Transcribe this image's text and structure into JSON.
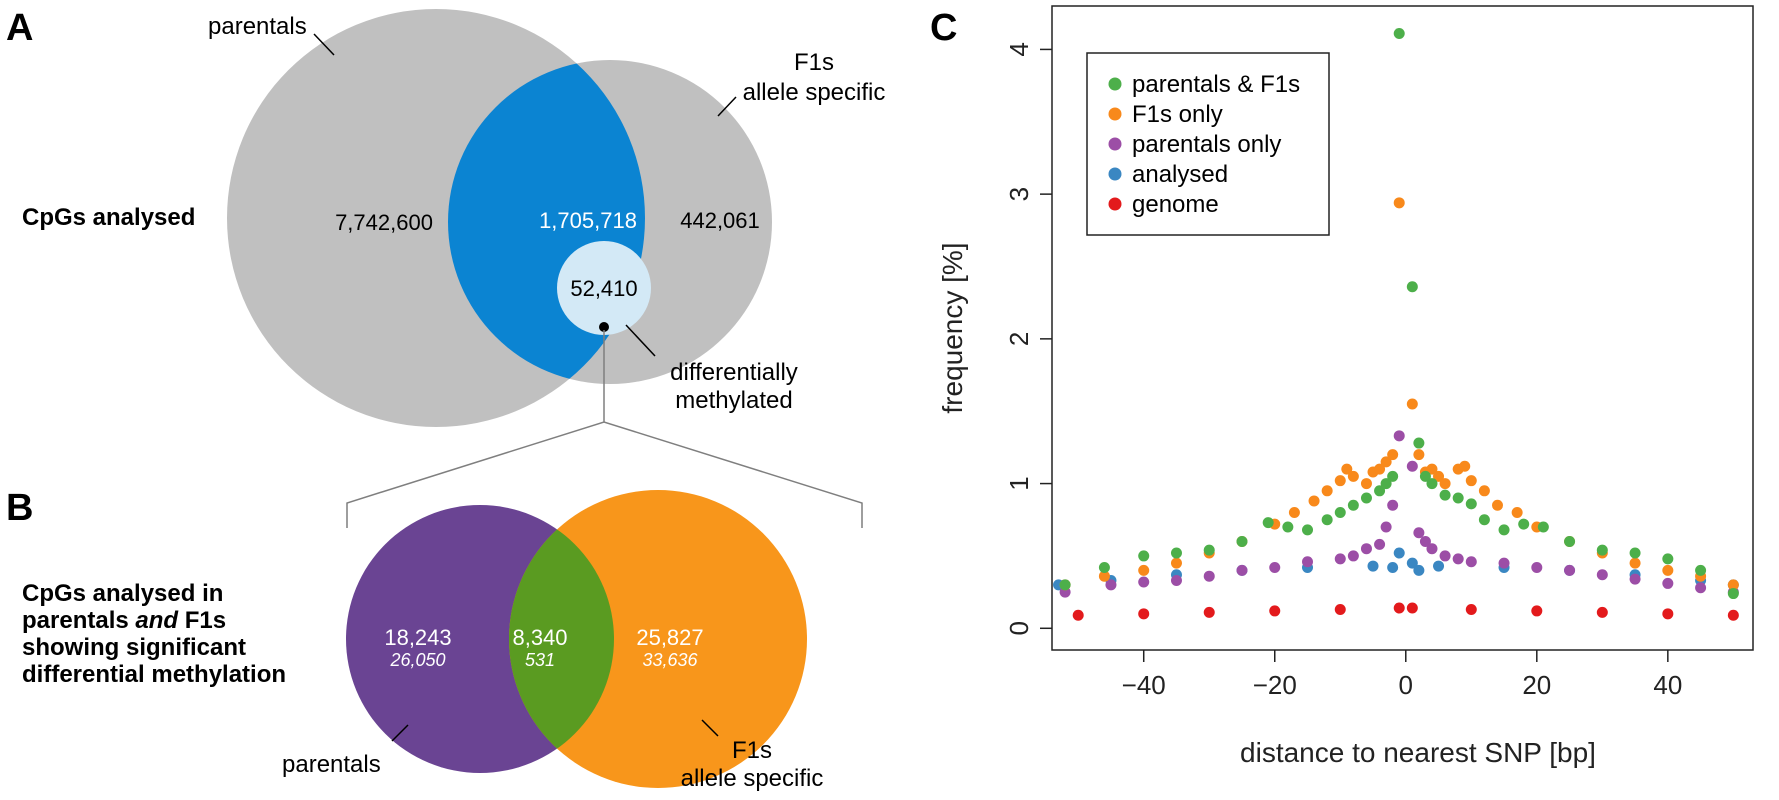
{
  "panels": {
    "a": {
      "letter": "A",
      "row_label": "CpGs analysed",
      "set1_label": "parentals",
      "set2_label_line1": "F1s",
      "set2_label_line2": "allele specific",
      "parentals_only": "7,742,600",
      "both": "1,705,718",
      "f1_only": "442,061",
      "dm": "52,410",
      "dm_label_line1": "differentially",
      "dm_label_line2": "methylated",
      "colors": {
        "gray": "#c0c0c0",
        "blue": "#0b84d2",
        "light_blue": "#d3e9f6"
      }
    },
    "b": {
      "letter": "B",
      "row_label_line1": "CpGs analysed in",
      "row_label_line2_pre": "parentals ",
      "row_label_line2_ital": "and",
      "row_label_line2_post": " F1s",
      "row_label_line3": "showing significant",
      "row_label_line4": "differential methylation",
      "left_main": "18,243",
      "left_sub": "26,050",
      "mid_main": "8,340",
      "mid_sub": "531",
      "right_main": "25,827",
      "right_sub": "33,636",
      "left_label": "parentals",
      "right_label_line1": "F1s",
      "right_label_line2": "allele specific",
      "colors": {
        "purple": "#6a4493",
        "orange": "#f8961b",
        "green": "#5a9b21"
      }
    },
    "c": {
      "letter": "C"
    }
  },
  "chart_data": {
    "type": "scatter",
    "xlabel": "distance to nearest SNP [bp]",
    "ylabel": "frequency [%]",
    "xlim": [
      -54,
      53
    ],
    "ylim": [
      -0.15,
      4.3
    ],
    "xticks": [
      -40,
      -20,
      0,
      20,
      40
    ],
    "yticks": [
      0,
      1,
      2,
      3,
      4
    ],
    "legend_position": "top-left",
    "grid": false,
    "series": [
      {
        "name": "genome",
        "color": "#e31a1c",
        "x": [
          -50,
          -40,
          -30,
          -20,
          -10,
          -1,
          1,
          10,
          20,
          30,
          40,
          50
        ],
        "y": [
          0.09,
          0.1,
          0.11,
          0.12,
          0.13,
          0.14,
          0.14,
          0.13,
          0.12,
          0.11,
          0.1,
          0.09
        ]
      },
      {
        "name": "analysed",
        "color": "#3a87c2",
        "x": [
          -53,
          -45,
          -35,
          -25,
          -15,
          -5,
          -2,
          -1,
          1,
          2,
          5,
          15,
          25,
          35,
          45,
          50
        ],
        "y": [
          0.3,
          0.33,
          0.37,
          0.4,
          0.42,
          0.43,
          0.42,
          0.52,
          0.45,
          0.4,
          0.43,
          0.42,
          0.4,
          0.37,
          0.33,
          0.3
        ]
      },
      {
        "name": "parentals only",
        "color": "#9c4ea6",
        "x": [
          -52,
          -45,
          -40,
          -35,
          -30,
          -25,
          -20,
          -15,
          -10,
          -8,
          -6,
          -4,
          -3,
          -2,
          -1,
          1,
          2,
          3,
          4,
          6,
          8,
          10,
          15,
          20,
          25,
          30,
          35,
          40,
          45,
          50
        ],
        "y": [
          0.25,
          0.3,
          0.32,
          0.33,
          0.36,
          0.4,
          0.42,
          0.46,
          0.48,
          0.5,
          0.55,
          0.58,
          0.7,
          0.85,
          1.33,
          1.12,
          0.66,
          0.6,
          0.55,
          0.5,
          0.48,
          0.46,
          0.45,
          0.42,
          0.4,
          0.37,
          0.34,
          0.31,
          0.28,
          0.25
        ]
      },
      {
        "name": "F1s only",
        "color": "#f8891b",
        "x": [
          -52,
          -46,
          -40,
          -35,
          -30,
          -25,
          -20,
          -17,
          -14,
          -12,
          -10,
          -9,
          -8,
          -6,
          -5,
          -4,
          -3,
          -2,
          -1,
          1,
          2,
          3,
          4,
          5,
          6,
          8,
          9,
          10,
          12,
          14,
          17,
          20,
          25,
          30,
          35,
          40,
          45,
          50
        ],
        "y": [
          0.3,
          0.36,
          0.4,
          0.45,
          0.52,
          0.6,
          0.72,
          0.8,
          0.88,
          0.95,
          1.02,
          1.1,
          1.05,
          1.0,
          1.08,
          1.1,
          1.15,
          1.2,
          2.94,
          1.55,
          1.2,
          1.08,
          1.1,
          1.05,
          1.0,
          1.1,
          1.12,
          1.02,
          0.95,
          0.85,
          0.8,
          0.7,
          0.6,
          0.52,
          0.45,
          0.4,
          0.36,
          0.3
        ]
      },
      {
        "name": "parentals & F1s",
        "color": "#4daf4a",
        "x": [
          -52,
          -46,
          -40,
          -35,
          -30,
          -25,
          -21,
          -18,
          -15,
          -12,
          -10,
          -8,
          -6,
          -4,
          -3,
          -2,
          -1,
          1,
          2,
          3,
          4,
          6,
          8,
          10,
          12,
          15,
          18,
          21,
          25,
          30,
          35,
          40,
          45,
          50
        ],
        "y": [
          0.3,
          0.42,
          0.5,
          0.52,
          0.54,
          0.6,
          0.73,
          0.7,
          0.68,
          0.75,
          0.8,
          0.85,
          0.9,
          0.95,
          1.0,
          1.05,
          4.11,
          2.36,
          1.28,
          1.05,
          1.0,
          0.92,
          0.9,
          0.86,
          0.75,
          0.68,
          0.72,
          0.7,
          0.6,
          0.54,
          0.52,
          0.48,
          0.4,
          0.24
        ]
      }
    ],
    "legend_order": [
      "parentals & F1s",
      "F1s only",
      "parentals only",
      "analysed",
      "genome"
    ]
  }
}
